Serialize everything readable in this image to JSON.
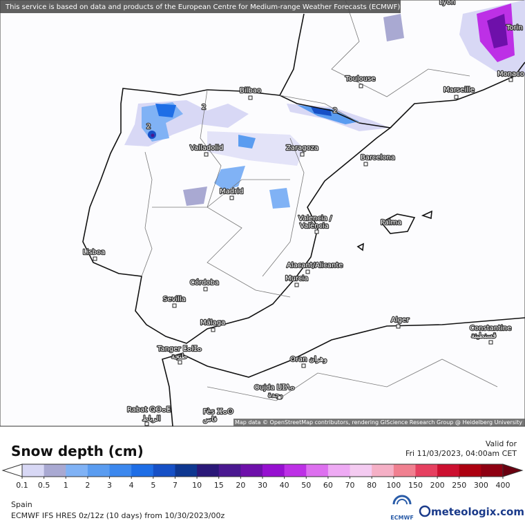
{
  "banner": "This service is based on data and products of the European Centre for Medium-range Weather Forecasts (ECMWF)",
  "attribution": "Map data © OpenStreetMap contributors, rendering GIScience Research Group @ Heidelberg University",
  "cities": {
    "lyon": "Lyon",
    "torino": "Torin",
    "monaco": "Monaco",
    "toulouse": "Toulouse",
    "marseille": "Marseille",
    "bilbao": "Bilbao",
    "valladolid": "Valladolid",
    "zaragoza": "Zaragoza",
    "barcelona": "Barcelona",
    "madrid": "Madrid",
    "valencia": [
      "Valencia /",
      "València"
    ],
    "palma": "Palma",
    "lisboa": "Lisboa",
    "alicante": "Alacant/Alicante",
    "murcia": "Murcia",
    "cordoba": "Córdoba",
    "sevilla": "Sevilla",
    "malaga": "Málaga",
    "alger": "Alger",
    "constantine": [
      "Constantine",
      "قسنطينة"
    ],
    "tanger": [
      "Tanger ⵟⴰⵏⵊⴰ",
      "طنجة"
    ],
    "oran": "Oran وهران",
    "oujda": [
      "Oujda ⵡⵊⴷⴰ",
      "وجدة"
    ],
    "rabat": [
      "Rabat ⵕⴱⴰⵟ",
      "الرباط"
    ],
    "fes": [
      "Fès ⴼⴰⵙ",
      "فاس"
    ]
  },
  "contours": [
    "2",
    "2",
    "2"
  ],
  "legend": {
    "title": "Snow depth (cm)",
    "ticks": [
      0.1,
      0.5,
      1,
      2,
      3,
      4,
      5,
      7,
      10,
      15,
      20,
      30,
      40,
      50,
      60,
      70,
      80,
      100,
      150,
      200,
      250,
      300,
      400
    ],
    "colors": [
      "#d8d8f5",
      "#a9a9d2",
      "#80b2f5",
      "#5a9cf0",
      "#3c88ee",
      "#1e6ee6",
      "#1650c6",
      "#0e3790",
      "#2a1878",
      "#4a1890",
      "#6e10aa",
      "#9610d0",
      "#bd30e6",
      "#dd70ef",
      "#eeaaf4",
      "#f4cbf1",
      "#f5b0c6",
      "#f08090",
      "#e64060",
      "#cc1030",
      "#ac0010",
      "#8e0012"
    ],
    "below_color": "#ffffff",
    "above_color": "#6a0010"
  },
  "valid": {
    "label": "Valid for",
    "time": "Fri 11/03/2023, 04:00am CET"
  },
  "footer": {
    "region": "Spain",
    "model": "ECMWF IFS HRES 0z/12z (10 days) from 10/30/2023/00z"
  },
  "logos": {
    "ecmwf": "ECMWF",
    "meteologix": "meteologix.com"
  }
}
